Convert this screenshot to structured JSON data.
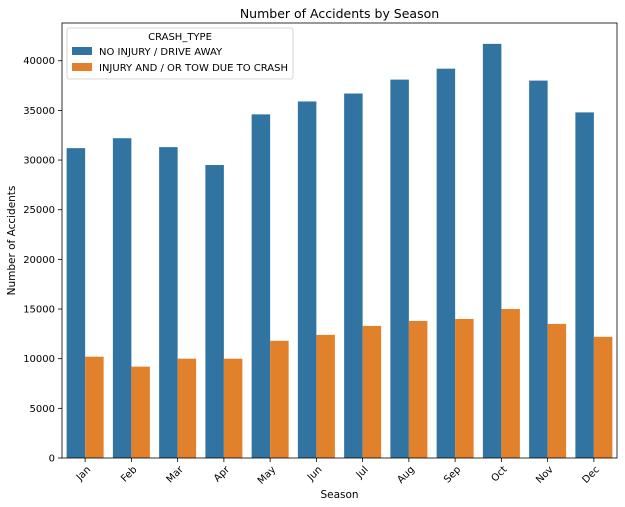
{
  "chart_data": {
    "type": "bar",
    "title": "Number of Accidents by Season",
    "xlabel": "Season",
    "ylabel": "Number of Accidents",
    "categories": [
      "Jan",
      "Feb",
      "Mar",
      "Apr",
      "May",
      "Jun",
      "Jul",
      "Aug",
      "Sep",
      "Oct",
      "Nov",
      "Dec"
    ],
    "ylim": [
      0,
      43800
    ],
    "yticks": [
      0,
      5000,
      10000,
      15000,
      20000,
      25000,
      30000,
      35000,
      40000
    ],
    "grid": false,
    "legend": {
      "title": "CRASH_TYPE",
      "placement": "top-left"
    },
    "series": [
      {
        "name": "NO INJURY / DRIVE AWAY",
        "color": "#3274a1",
        "values": [
          31200,
          32200,
          31300,
          29500,
          34600,
          35900,
          36700,
          38100,
          39200,
          41700,
          38000,
          34800
        ]
      },
      {
        "name": "INJURY AND / OR TOW DUE TO CRASH",
        "color": "#e1812c",
        "values": [
          10200,
          9200,
          10000,
          10000,
          11800,
          12400,
          13300,
          13800,
          14000,
          15000,
          13500,
          12200
        ]
      }
    ]
  }
}
